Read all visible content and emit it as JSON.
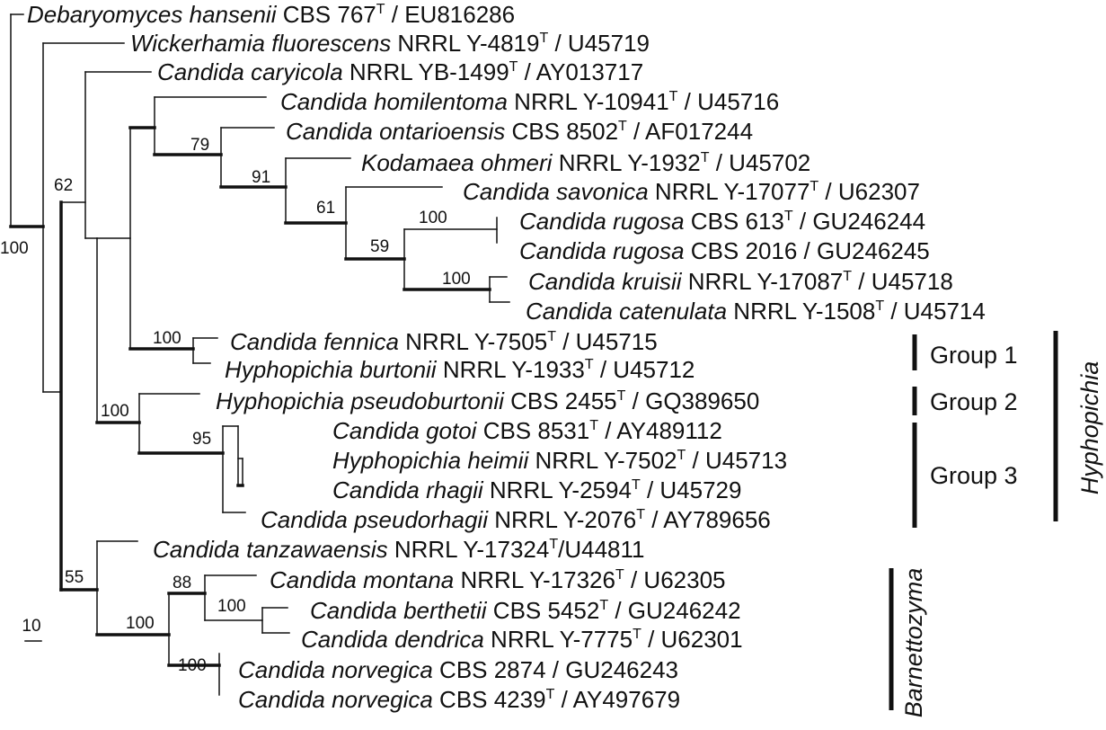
{
  "taxa": [
    {
      "name": "Debaryomyces hansenii",
      "strain": "CBS 767",
      "type": true,
      "acc": " / EU816286"
    },
    {
      "name": "Wickerhamia fluorescens",
      "strain": "NRRL Y-4819",
      "type": true,
      "acc": " / U45719"
    },
    {
      "name": "Candida caryicola",
      "strain": "NRRL YB-1499",
      "type": true,
      "acc": " / AY013717"
    },
    {
      "name": "Candida homilentoma",
      "strain": "NRRL Y-10941",
      "type": true,
      "acc": " / U45716"
    },
    {
      "name": "Candida ontarioensis",
      "strain": "CBS 8502",
      "type": true,
      "acc": " / AF017244"
    },
    {
      "name": "Kodamaea ohmeri",
      "strain": "NRRL Y-1932",
      "type": true,
      "acc": " / U45702"
    },
    {
      "name": "Candida savonica",
      "strain": "NRRL Y-17077",
      "type": true,
      "acc": " / U62307"
    },
    {
      "name": "Candida rugosa",
      "strain": "CBS 613",
      "type": true,
      "acc": " / GU246244"
    },
    {
      "name": "Candida rugosa",
      "strain": "CBS 2016",
      "type": false,
      "acc": " / GU246245"
    },
    {
      "name": "Candida kruisii",
      "strain": "NRRL Y-17087",
      "type": true,
      "acc": " / U45718"
    },
    {
      "name": "Candida catenulata",
      "strain": "NRRL Y-1508",
      "type": true,
      "acc": " / U45714"
    },
    {
      "name": "Candida fennica",
      "strain": "NRRL Y-7505",
      "type": true,
      "acc": " / U45715"
    },
    {
      "name": "Hyphopichia burtonii",
      "strain": "NRRL Y-1933",
      "type": true,
      "acc": " / U45712"
    },
    {
      "name": "Hyphopichia pseudoburtonii",
      "strain": "CBS 2455",
      "type": true,
      "acc": " / GQ389650",
      "bold": true
    },
    {
      "name": "Candida gotoi",
      "strain": "CBS 8531",
      "type": true,
      "acc": " / AY489112"
    },
    {
      "name": "Hyphopichia heimii",
      "strain": "NRRL Y-7502",
      "type": true,
      "acc": " / U45713"
    },
    {
      "name": "Candida rhagii",
      "strain": "NRRL Y-2594",
      "type": true,
      "acc": " / U45729"
    },
    {
      "name": "Candida pseudorhagii",
      "strain": "NRRL Y-2076",
      "type": true,
      "acc": " / AY789656"
    },
    {
      "name": "Candida tanzawaensis",
      "strain": "NRRL Y-17324",
      "type": true,
      "acc": "/U44811"
    },
    {
      "name": "Candida montana",
      "strain": "NRRL Y-17326",
      "type": true,
      "acc": " / U62305"
    },
    {
      "name": "Candida berthetii",
      "strain": "CBS 5452",
      "type": true,
      "acc": " / GU246242"
    },
    {
      "name": "Candida dendrica",
      "strain": "NRRL Y-7775",
      "type": true,
      "acc": " / U62301"
    },
    {
      "name": "Candida norvegica",
      "strain": "CBS 2874",
      "type": false,
      "acc": " / GU246243"
    },
    {
      "name": "Candida norvegica",
      "strain": "CBS 4239",
      "type": true,
      "acc": " / AY497679"
    }
  ],
  "type_mark": "T",
  "bootstrap": [
    "100",
    "62",
    "79",
    "91",
    "61",
    "100",
    "59",
    "100",
    "100",
    "100",
    "95",
    "55",
    "88",
    "100",
    "100",
    "100"
  ],
  "groups": [
    "Group 1",
    "Group 2",
    "Group 3"
  ],
  "genera": [
    "Hyphopichia",
    "Barnettozyma"
  ],
  "scale_bar": "10",
  "colors": {
    "line": "#111111"
  }
}
